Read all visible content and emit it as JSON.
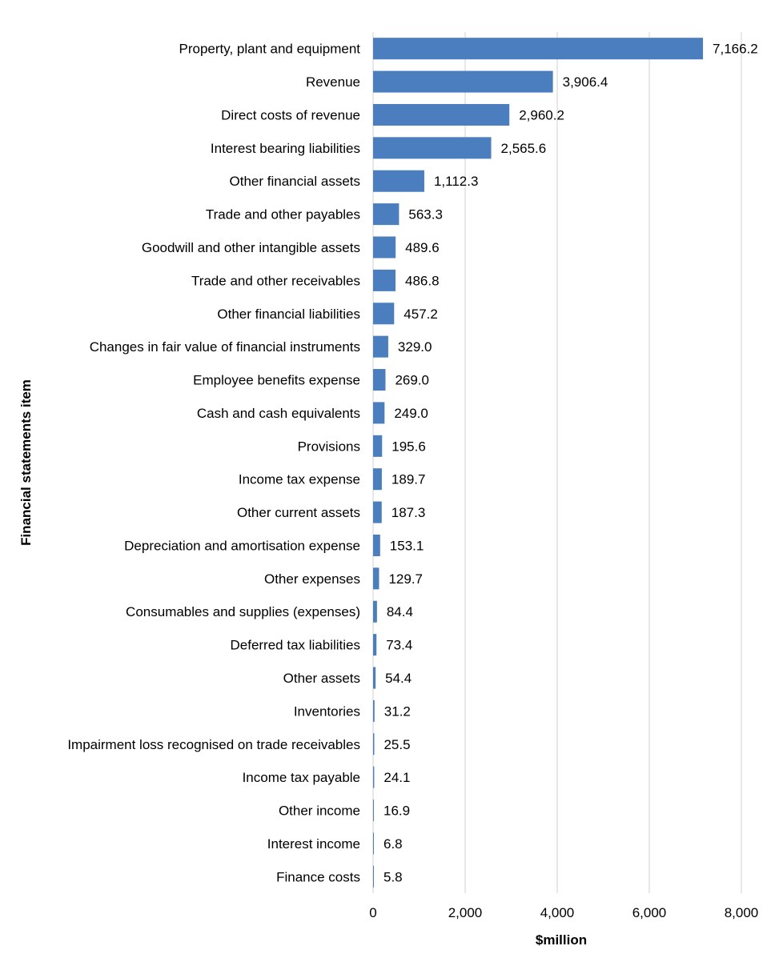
{
  "chart_data": {
    "type": "bar",
    "orientation": "horizontal",
    "title": "",
    "xlabel": "$million",
    "ylabel": "Financial statements item",
    "xlim": [
      0,
      8000
    ],
    "xticks": [
      0,
      2000,
      4000,
      6000,
      8000
    ],
    "xtick_labels": [
      "0",
      "2,000",
      "4,000",
      "6,000",
      "8,000"
    ],
    "grid": "vertical",
    "bar_color": "#4A7EBF",
    "categories": [
      "Property, plant and equipment",
      "Revenue",
      "Direct costs of revenue",
      "Interest bearing liabilities",
      "Other financial assets",
      "Trade and other payables",
      "Goodwill and other intangible assets",
      "Trade and other receivables",
      "Other financial liabilities",
      "Changes in fair value of financial instruments",
      "Employee benefits expense",
      "Cash and cash equivalents",
      "Provisions",
      "Income tax expense",
      "Other current assets",
      "Depreciation and amortisation expense",
      "Other expenses",
      "Consumables and supplies (expenses)",
      "Deferred tax liabilities",
      "Other assets",
      "Inventories",
      "Impairment loss recognised on trade receivables",
      "Income tax payable",
      "Other income",
      "Interest income",
      "Finance costs"
    ],
    "values": [
      7166.2,
      3906.4,
      2960.2,
      2565.6,
      1112.3,
      563.3,
      489.6,
      486.8,
      457.2,
      329.0,
      269.0,
      249.0,
      195.6,
      189.7,
      187.3,
      153.1,
      129.7,
      84.4,
      73.4,
      54.4,
      31.2,
      25.5,
      24.1,
      16.9,
      6.8,
      5.8
    ],
    "value_labels": [
      "7,166.2",
      "3,906.4",
      "2,960.2",
      "2,565.6",
      "1,112.3",
      "563.3",
      "489.6",
      "486.8",
      "457.2",
      "329.0",
      "269.0",
      "249.0",
      "195.6",
      "189.7",
      "187.3",
      "153.1",
      "129.7",
      "84.4",
      "73.4",
      "54.4",
      "31.2",
      "25.5",
      "24.1",
      "16.9",
      "6.8",
      "5.8"
    ]
  }
}
